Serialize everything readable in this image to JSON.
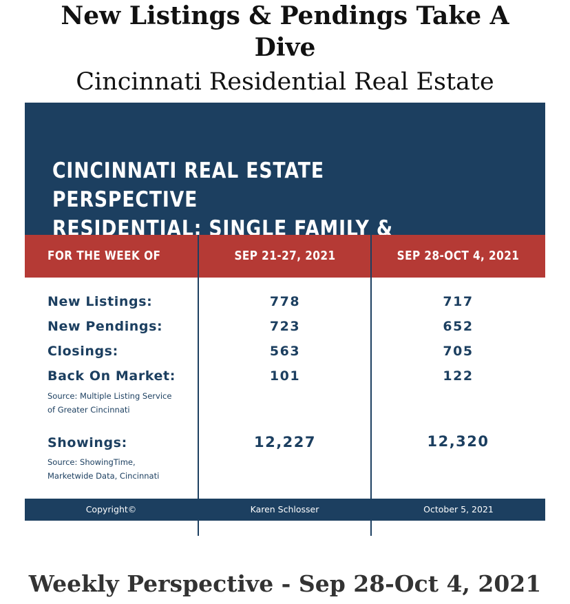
{
  "headline": "New Listings & Pendings Take A Dive",
  "subhead": "Cincinnati Residential Real Estate",
  "graphic": {
    "banner_title": "CINCINNATI REAL ESTATE PERSPECTIVE\nRESIDENTIAL: SINGLE FAMILY & CONDO",
    "header": {
      "label": "FOR THE WEEK OF",
      "period1": "SEP 21-27, 2021",
      "period2": "SEP 28-OCT 4, 2021"
    },
    "metrics": {
      "new_listings": {
        "label": "New Listings:",
        "v1": "778",
        "v2": "717"
      },
      "new_pendings": {
        "label": "New Pendings:",
        "v1": "723",
        "v2": "652"
      },
      "closings": {
        "label": "Closings:",
        "v1": "563",
        "v2": "705"
      },
      "back_on_market": {
        "label": "Back On Market:",
        "v1": "101",
        "v2": "122"
      },
      "showings": {
        "label": "Showings:",
        "v1": "12,227",
        "v2": "12,320"
      }
    },
    "source_mls": {
      "line1": "Source: Multiple Listing Service",
      "line2": "of Greater Cincinnati"
    },
    "source_showings": {
      "line1": "Source: ShowingTime,",
      "line2": "Marketwide Data, Cincinnati"
    },
    "footer": {
      "copyright": "Copyright©",
      "author": "Karen Schlosser",
      "date": "October 5, 2021"
    }
  },
  "bottom_caption": "Weekly Perspective - Sep 28-Oct 4, 2021",
  "colors": {
    "navy": "#1c3f60",
    "red": "#b53a35",
    "white": "#ffffff"
  }
}
